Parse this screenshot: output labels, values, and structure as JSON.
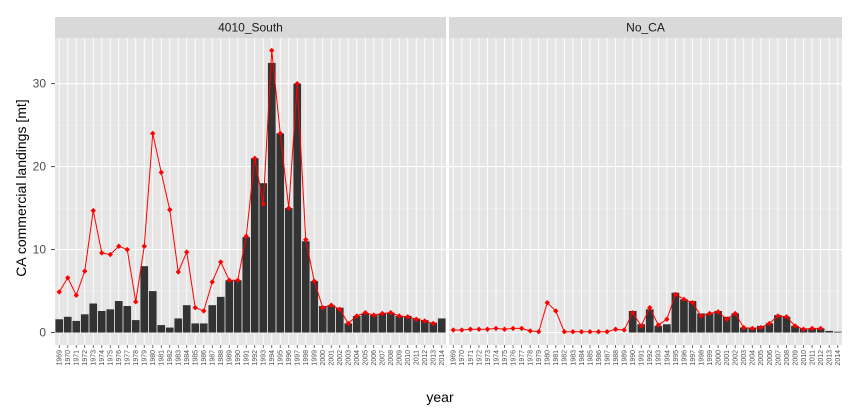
{
  "chart_data": {
    "type": "bar",
    "xlabel": "year",
    "ylabel": "CA commercial landings [mt]",
    "ylim": [
      -1.5,
      35.5
    ],
    "yticks": [
      0,
      10,
      20,
      30
    ],
    "grid": true,
    "colors": {
      "panel_background": "#e5e5e5",
      "grid_major": "#ffffff",
      "strip_background": "#d9d9d9",
      "bar_fill": "#333333",
      "line_color": "#ff0000",
      "point_color": "#ff0000"
    },
    "years": [
      1969,
      1970,
      1971,
      1972,
      1973,
      1974,
      1975,
      1976,
      1977,
      1978,
      1979,
      1980,
      1981,
      1982,
      1983,
      1984,
      1985,
      1986,
      1987,
      1988,
      1989,
      1990,
      1991,
      1992,
      1993,
      1994,
      1995,
      1996,
      1997,
      1998,
      1999,
      2000,
      2001,
      2002,
      2003,
      2004,
      2005,
      2006,
      2007,
      2008,
      2009,
      2010,
      2011,
      2012,
      2013,
      2014
    ],
    "panels": [
      {
        "strip": "4010_South",
        "series": [
          {
            "type": "bar",
            "values": [
              1.6,
              1.9,
              1.4,
              2.2,
              3.5,
              2.6,
              2.8,
              3.8,
              3.2,
              1.5,
              8.0,
              5.0,
              0.9,
              0.6,
              1.7,
              3.3,
              1.1,
              1.1,
              3.3,
              4.3,
              6.3,
              6.3,
              11.5,
              21.0,
              18.0,
              32.5,
              24.0,
              15.0,
              30.0,
              11.0,
              6.2,
              3.2,
              3.3,
              3.0,
              1.1,
              2.0,
              2.3,
              2.1,
              2.3,
              2.4,
              2.0,
              2.0,
              1.7,
              1.5,
              1.2,
              1.7
            ]
          },
          {
            "type": "line",
            "values": [
              4.9,
              6.6,
              4.5,
              7.4,
              14.7,
              9.6,
              9.4,
              10.4,
              10.0,
              3.7,
              10.4,
              24.0,
              19.3,
              14.8,
              7.3,
              9.7,
              3.0,
              2.6,
              6.1,
              8.5,
              6.3,
              6.3,
              11.6,
              21.0,
              15.5,
              34.0,
              24.0,
              15.0,
              30.0,
              11.2,
              6.2,
              3.0,
              3.3,
              2.8,
              1.1,
              2.0,
              2.4,
              2.1,
              2.3,
              2.4,
              2.0,
              1.9,
              1.6,
              1.4,
              1.1,
              null
            ]
          }
        ]
      },
      {
        "strip": "No_CA",
        "series": [
          {
            "type": "bar",
            "values": [
              0,
              0,
              0,
              0,
              0,
              0,
              0,
              0,
              0,
              0,
              0,
              0,
              0,
              0,
              0,
              0,
              0,
              0,
              0,
              0,
              0,
              2.6,
              1.0,
              2.8,
              0.8,
              1.0,
              4.8,
              4.0,
              3.8,
              2.3,
              2.3,
              2.6,
              1.9,
              2.3,
              0.6,
              0.6,
              0.8,
              1.1,
              2.1,
              1.9,
              0.8,
              0.5,
              0.5,
              0.5,
              0.2,
              0.1
            ]
          },
          {
            "type": "line",
            "values": [
              0.3,
              0.3,
              0.4,
              0.4,
              0.4,
              0.5,
              0.4,
              0.5,
              0.5,
              0.2,
              0.1,
              3.6,
              2.6,
              0.1,
              0.1,
              0.1,
              0.1,
              0.1,
              0.1,
              0.4,
              0.3,
              2.4,
              0.8,
              3.0,
              0.9,
              1.6,
              4.6,
              4.0,
              3.6,
              2.0,
              2.3,
              2.5,
              1.6,
              2.3,
              0.6,
              0.5,
              0.6,
              1.1,
              2.0,
              1.9,
              0.8,
              0.4,
              0.5,
              0.5,
              null,
              null
            ]
          }
        ]
      }
    ]
  }
}
